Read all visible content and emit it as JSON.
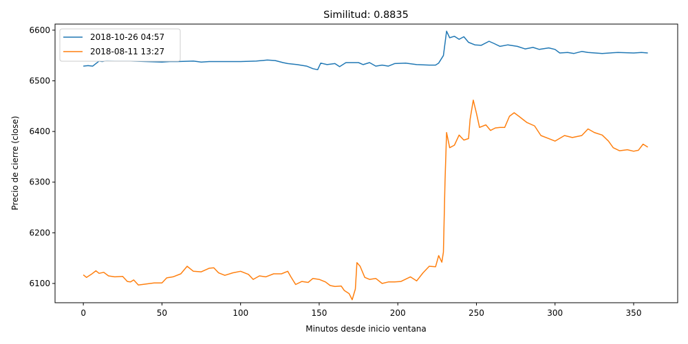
{
  "chart_data": {
    "type": "line",
    "title": "Similitud: 0.8835",
    "xlabel": "Minutos desde inicio ventana",
    "ylabel": "Precio de cierre (close)",
    "xlim": [
      -18,
      378
    ],
    "ylim": [
      6062,
      6612
    ],
    "xticks": [
      0,
      50,
      100,
      150,
      200,
      250,
      300,
      350
    ],
    "yticks": [
      6100,
      6200,
      6300,
      6400,
      6500,
      6600
    ],
    "grid": false,
    "legend_position": "top-left",
    "series": [
      {
        "name": "2018-10-26 04:57",
        "color": "#1f77b4",
        "points": [
          [
            0,
            6529
          ],
          [
            3,
            6530
          ],
          [
            6,
            6529
          ],
          [
            8,
            6534
          ],
          [
            10,
            6539
          ],
          [
            12,
            6538
          ],
          [
            15,
            6540
          ],
          [
            20,
            6539
          ],
          [
            30,
            6539
          ],
          [
            40,
            6538
          ],
          [
            50,
            6537
          ],
          [
            55,
            6538
          ],
          [
            60,
            6538
          ],
          [
            70,
            6539
          ],
          [
            75,
            6537
          ],
          [
            80,
            6538
          ],
          [
            90,
            6538
          ],
          [
            100,
            6538
          ],
          [
            110,
            6539
          ],
          [
            117,
            6541
          ],
          [
            122,
            6540
          ],
          [
            127,
            6536
          ],
          [
            130,
            6534
          ],
          [
            136,
            6532
          ],
          [
            142,
            6529
          ],
          [
            146,
            6524
          ],
          [
            149,
            6522
          ],
          [
            151,
            6535
          ],
          [
            155,
            6532
          ],
          [
            160,
            6534
          ],
          [
            163,
            6528
          ],
          [
            167,
            6536
          ],
          [
            175,
            6536
          ],
          [
            178,
            6532
          ],
          [
            182,
            6536
          ],
          [
            186,
            6529
          ],
          [
            190,
            6531
          ],
          [
            194,
            6529
          ],
          [
            198,
            6534
          ],
          [
            205,
            6535
          ],
          [
            212,
            6532
          ],
          [
            220,
            6531
          ],
          [
            224,
            6531
          ],
          [
            226,
            6535
          ],
          [
            229,
            6550
          ],
          [
            231,
            6598
          ],
          [
            233,
            6585
          ],
          [
            236,
            6588
          ],
          [
            239,
            6582
          ],
          [
            242,
            6587
          ],
          [
            245,
            6576
          ],
          [
            249,
            6571
          ],
          [
            253,
            6570
          ],
          [
            258,
            6578
          ],
          [
            261,
            6574
          ],
          [
            265,
            6568
          ],
          [
            270,
            6571
          ],
          [
            276,
            6568
          ],
          [
            281,
            6563
          ],
          [
            286,
            6566
          ],
          [
            290,
            6562
          ],
          [
            296,
            6565
          ],
          [
            300,
            6562
          ],
          [
            303,
            6555
          ],
          [
            308,
            6556
          ],
          [
            312,
            6554
          ],
          [
            317,
            6558
          ],
          [
            321,
            6556
          ],
          [
            330,
            6554
          ],
          [
            340,
            6556
          ],
          [
            350,
            6555
          ],
          [
            355,
            6556
          ],
          [
            359,
            6555
          ]
        ]
      },
      {
        "name": "2018-08-11 13:27",
        "color": "#ff7f0e",
        "points": [
          [
            0,
            6117
          ],
          [
            2,
            6112
          ],
          [
            5,
            6118
          ],
          [
            8,
            6125
          ],
          [
            10,
            6120
          ],
          [
            13,
            6122
          ],
          [
            16,
            6115
          ],
          [
            20,
            6113
          ],
          [
            25,
            6114
          ],
          [
            28,
            6104
          ],
          [
            30,
            6103
          ],
          [
            32,
            6107
          ],
          [
            35,
            6097
          ],
          [
            40,
            6099
          ],
          [
            45,
            6101
          ],
          [
            50,
            6101
          ],
          [
            53,
            6111
          ],
          [
            57,
            6113
          ],
          [
            62,
            6119
          ],
          [
            66,
            6134
          ],
          [
            70,
            6124
          ],
          [
            75,
            6123
          ],
          [
            80,
            6130
          ],
          [
            83,
            6131
          ],
          [
            86,
            6121
          ],
          [
            90,
            6116
          ],
          [
            95,
            6121
          ],
          [
            100,
            6124
          ],
          [
            105,
            6118
          ],
          [
            108,
            6108
          ],
          [
            112,
            6115
          ],
          [
            116,
            6113
          ],
          [
            121,
            6119
          ],
          [
            126,
            6119
          ],
          [
            130,
            6124
          ],
          [
            132,
            6113
          ],
          [
            135,
            6098
          ],
          [
            139,
            6104
          ],
          [
            143,
            6102
          ],
          [
            146,
            6110
          ],
          [
            150,
            6108
          ],
          [
            154,
            6103
          ],
          [
            157,
            6096
          ],
          [
            160,
            6094
          ],
          [
            164,
            6095
          ],
          [
            166,
            6086
          ],
          [
            169,
            6080
          ],
          [
            171,
            6068
          ],
          [
            173,
            6089
          ],
          [
            174,
            6141
          ],
          [
            176,
            6134
          ],
          [
            179,
            6112
          ],
          [
            182,
            6108
          ],
          [
            186,
            6110
          ],
          [
            190,
            6100
          ],
          [
            194,
            6103
          ],
          [
            198,
            6103
          ],
          [
            202,
            6104
          ],
          [
            208,
            6113
          ],
          [
            212,
            6105
          ],
          [
            216,
            6121
          ],
          [
            220,
            6134
          ],
          [
            224,
            6133
          ],
          [
            226,
            6155
          ],
          [
            228,
            6142
          ],
          [
            229,
            6162
          ],
          [
            230,
            6300
          ],
          [
            231,
            6398
          ],
          [
            233,
            6368
          ],
          [
            236,
            6373
          ],
          [
            239,
            6393
          ],
          [
            242,
            6383
          ],
          [
            245,
            6386
          ],
          [
            246,
            6424
          ],
          [
            248,
            6462
          ],
          [
            250,
            6436
          ],
          [
            252,
            6408
          ],
          [
            256,
            6413
          ],
          [
            259,
            6402
          ],
          [
            262,
            6407
          ],
          [
            265,
            6408
          ],
          [
            268,
            6408
          ],
          [
            271,
            6430
          ],
          [
            274,
            6437
          ],
          [
            277,
            6430
          ],
          [
            282,
            6418
          ],
          [
            287,
            6411
          ],
          [
            291,
            6392
          ],
          [
            296,
            6386
          ],
          [
            300,
            6381
          ],
          [
            306,
            6392
          ],
          [
            311,
            6388
          ],
          [
            317,
            6392
          ],
          [
            321,
            6405
          ],
          [
            325,
            6398
          ],
          [
            330,
            6393
          ],
          [
            334,
            6381
          ],
          [
            337,
            6368
          ],
          [
            341,
            6362
          ],
          [
            346,
            6364
          ],
          [
            350,
            6361
          ],
          [
            353,
            6363
          ],
          [
            356,
            6375
          ],
          [
            359,
            6369
          ]
        ]
      }
    ]
  }
}
